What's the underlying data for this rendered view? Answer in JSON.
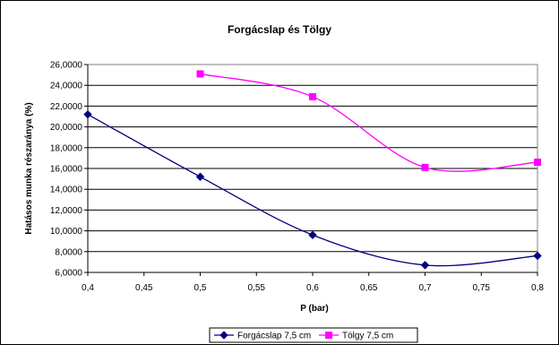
{
  "chart_data": {
    "type": "line",
    "title": "Forgácslap és Tölgy",
    "xlabel": "P (bar)",
    "ylabel": "Hatásos munka részaránya (%)",
    "xlim": [
      0.4,
      0.8
    ],
    "ylim": [
      6,
      26
    ],
    "x_ticks": [
      "0,4",
      "0,45",
      "0,5",
      "0,55",
      "0,6",
      "0,65",
      "0,7",
      "0,75",
      "0,8"
    ],
    "y_ticks": [
      "6,0000",
      "8,0000",
      "10,0000",
      "12,0000",
      "14,0000",
      "16,0000",
      "18,0000",
      "20,0000",
      "22,0000",
      "24,0000",
      "26,0000"
    ],
    "grid": true,
    "legend_position": "bottom",
    "series": [
      {
        "name": "Forgácslap 7,5 cm",
        "color": "#000080",
        "marker": "diamond",
        "x": [
          0.4,
          0.5,
          0.6,
          0.7,
          0.8
        ],
        "y": [
          21.2,
          15.2,
          9.6,
          6.7,
          7.6
        ]
      },
      {
        "name": "Tölgy 7,5 cm",
        "color": "#ff00ff",
        "marker": "square",
        "x": [
          0.5,
          0.6,
          0.7,
          0.8
        ],
        "y": [
          25.1,
          22.9,
          16.1,
          16.6
        ]
      }
    ]
  }
}
